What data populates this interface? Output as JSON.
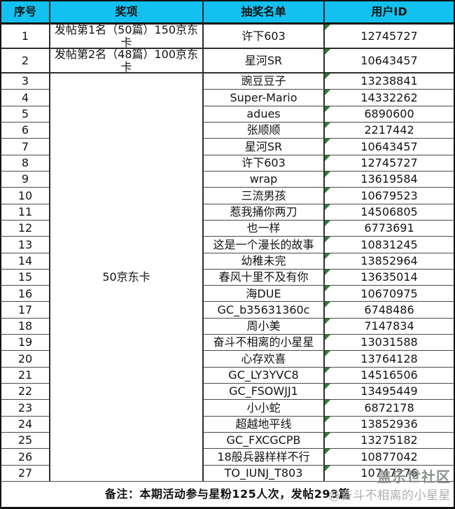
{
  "table": {
    "columns": [
      "序号",
      "奖项",
      "抽奖名单",
      "用户ID"
    ],
    "merged_prize": "50京东卡",
    "rows": [
      {
        "seq": "1",
        "prize": "发帖第1名（50篇）150京东卡",
        "name": "许下603",
        "user_id": "12745727"
      },
      {
        "seq": "2",
        "prize": "发帖第2名（48篇）100京东卡",
        "name": "星河SR",
        "user_id": "10643457"
      },
      {
        "seq": "3",
        "name": "豌豆豆子",
        "user_id": "13238841"
      },
      {
        "seq": "4",
        "name": "Super-Mario",
        "user_id": "14332262"
      },
      {
        "seq": "5",
        "name": "adues",
        "user_id": "6890600"
      },
      {
        "seq": "6",
        "name": "张顺顺",
        "user_id": "2217442"
      },
      {
        "seq": "7",
        "name": "星河SR",
        "user_id": "10643457"
      },
      {
        "seq": "8",
        "name": "许下603",
        "user_id": "12745727"
      },
      {
        "seq": "9",
        "name": "wrap",
        "user_id": "13619584"
      },
      {
        "seq": "10",
        "name": "三流男孩",
        "user_id": "10679523"
      },
      {
        "seq": "11",
        "name": "惹我捅你两刀",
        "user_id": "14506805"
      },
      {
        "seq": "12",
        "name": "也一样",
        "user_id": "6773691"
      },
      {
        "seq": "13",
        "name": "这是一个漫长的故事",
        "user_id": "10831245"
      },
      {
        "seq": "14",
        "name": "幼稚未完",
        "user_id": "13852964"
      },
      {
        "seq": "15",
        "name": "春风十里不及有你",
        "user_id": "13635014"
      },
      {
        "seq": "16",
        "name": "海DUE",
        "user_id": "10670975"
      },
      {
        "seq": "17",
        "name": "GC_b35631360c",
        "user_id": "6748486"
      },
      {
        "seq": "18",
        "name": "周小美",
        "user_id": "7147834"
      },
      {
        "seq": "19",
        "name": "奋斗不相离的小星星",
        "user_id": "13031588"
      },
      {
        "seq": "20",
        "name": "心存欢喜",
        "user_id": "13764128"
      },
      {
        "seq": "21",
        "name": "GC_LY3YVC8",
        "user_id": "14516506"
      },
      {
        "seq": "22",
        "name": "GC_FSOWJJ1",
        "user_id": "13495449"
      },
      {
        "seq": "23",
        "name": "小小蛇",
        "user_id": "6872178"
      },
      {
        "seq": "24",
        "name": "超越地平线",
        "user_id": "13852936"
      },
      {
        "seq": "25",
        "name": "GC_FXCGCPB",
        "user_id": "13275182"
      },
      {
        "seq": "26",
        "name": "18般兵器样样不行",
        "user_id": "10877042"
      },
      {
        "seq": "27",
        "name": "TO_IUNJ_T803",
        "user_id": "10747276"
      }
    ]
  },
  "footer": {
    "note": "备注：本期活动参与星粉125人次，发帖293篇"
  },
  "watermark": {
    "logo": "盖乐世社区",
    "handle": "@奋斗不相离的小星星"
  },
  "colors": {
    "header_bg": "#12C1EF",
    "grid_line": "#4A4A4A",
    "outer_border": "#111111",
    "triangle": "#2F7D33",
    "watermark_logo": "#8B918B",
    "watermark_handle": "#ABB1AB"
  }
}
